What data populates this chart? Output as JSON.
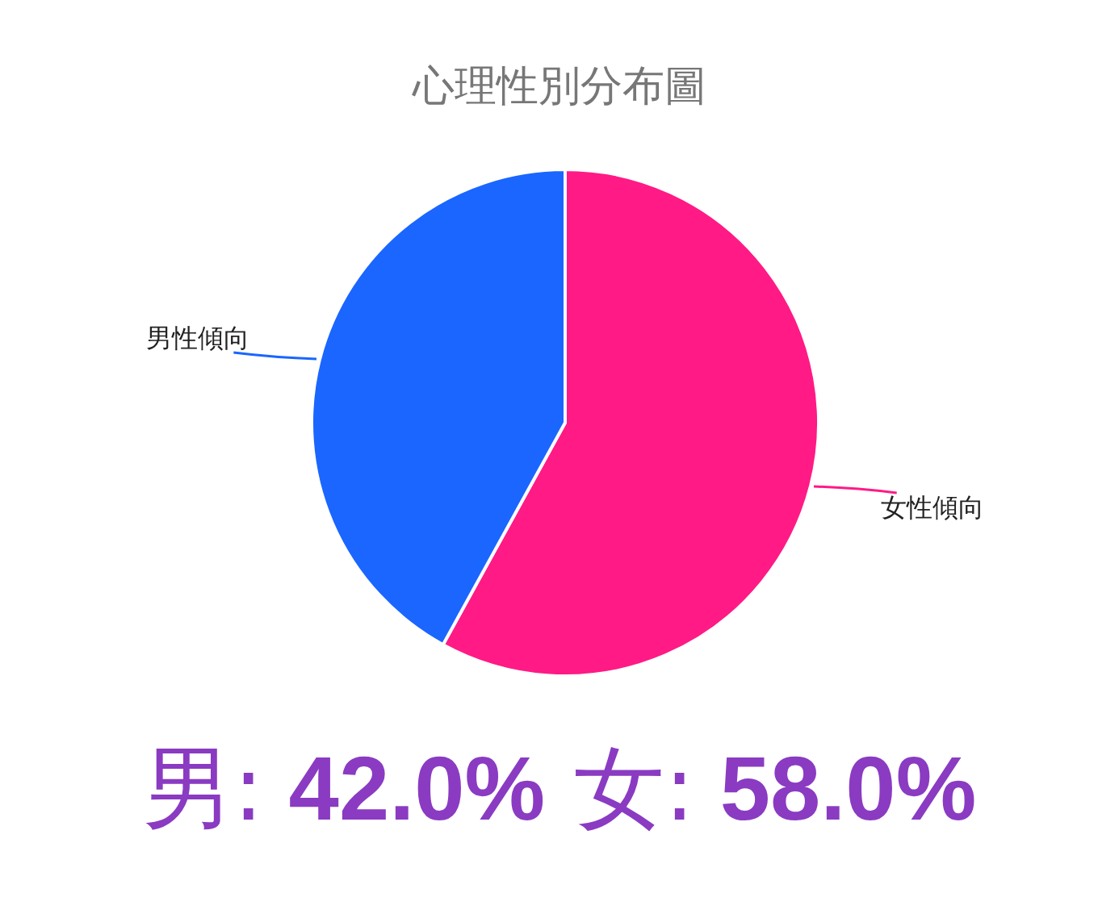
{
  "chart_data": {
    "type": "pie",
    "title": "心理性別分布圖",
    "categories": [
      "女性傾向",
      "男性傾向"
    ],
    "values": [
      58,
      42
    ],
    "colors": [
      "#ff1a86",
      "#1a66ff"
    ],
    "annotations": [
      "男: 42.0% 女: 58.0%"
    ]
  }
}
